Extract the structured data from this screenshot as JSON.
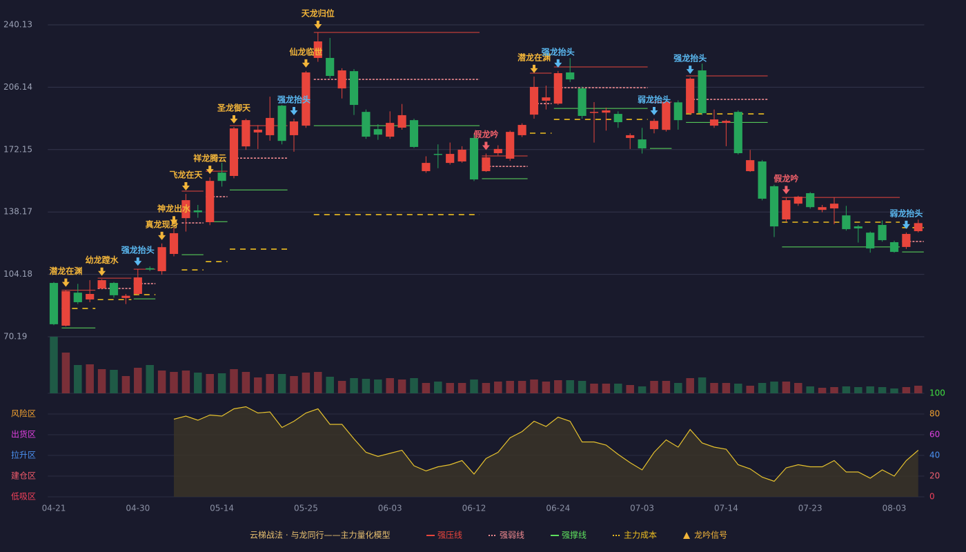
{
  "chart_data": {
    "type": "candlestick",
    "categories": [
      "04-21",
      null,
      null,
      null,
      null,
      null,
      null,
      "04-30",
      null,
      null,
      null,
      null,
      null,
      null,
      "05-14",
      null,
      null,
      null,
      null,
      null,
      null,
      "05-25",
      null,
      null,
      null,
      null,
      null,
      null,
      "06-03",
      null,
      null,
      null,
      null,
      null,
      null,
      "06-12",
      null,
      null,
      null,
      null,
      null,
      null,
      "06-24",
      null,
      null,
      null,
      null,
      null,
      null,
      "07-03",
      null,
      null,
      null,
      null,
      null,
      null,
      "07-14",
      null,
      null,
      null,
      null,
      null,
      null,
      "07-23",
      null,
      null,
      null,
      null,
      null,
      null,
      "08-03",
      null,
      null
    ],
    "open": [
      99.5,
      76.2,
      94.2,
      90.5,
      96.5,
      99.5,
      91.3,
      93.5,
      107.5,
      105.9,
      115.3,
      134.8,
      139.0,
      132.6,
      159.6,
      157.8,
      173.9,
      181.5,
      180.0,
      196.1,
      180.0,
      185.2,
      222.1,
      222.1,
      205.5,
      214.9,
      192.7,
      183.3,
      179.2,
      184.1,
      188.2,
      160.4,
      169.8,
      164.9,
      165.7,
      178.5,
      160.4,
      170.2,
      167.2,
      180.0,
      191.2,
      198.8,
      197.2,
      214.2,
      205.5,
      192.3,
      192.3,
      191.6,
      178.5,
      177.7,
      183.3,
      182.9,
      197.9,
      192.0,
      215.3,
      185.2,
      186.7,
      192.7,
      160.4,
      165.7,
      152.2,
      134.1,
      142.7,
      148.4,
      139.3,
      140.1,
      136.3,
      130.3,
      126.9,
      131.1,
      121.7,
      119.1,
      127.7
    ],
    "high": [
      100.0,
      95.5,
      99.0,
      101.0,
      101.5,
      100.0,
      93.5,
      107.0,
      108.5,
      121.0,
      129.5,
      148.0,
      142.0,
      157.0,
      165.0,
      184.5,
      189.0,
      185.5,
      201.0,
      196.5,
      189.0,
      215.0,
      236.0,
      233.0,
      216.5,
      216.0,
      194.0,
      186.0,
      193.0,
      197.0,
      189.0,
      168.5,
      175.0,
      176.0,
      174.0,
      180.5,
      170.0,
      174.5,
      182.5,
      186.5,
      212.0,
      207.0,
      215.0,
      222.0,
      206.5,
      198.0,
      195.0,
      193.0,
      181.0,
      184.0,
      189.0,
      198.5,
      199.0,
      211.5,
      219.0,
      194.0,
      188.5,
      193.5,
      172.0,
      166.5,
      153.0,
      146.0,
      147.0,
      149.0,
      142.0,
      146.0,
      141.5,
      131.0,
      127.5,
      133.5,
      122.5,
      127.0,
      134.0
    ],
    "low": [
      76.5,
      75.8,
      88.0,
      89.0,
      96.0,
      91.5,
      88.0,
      93.0,
      106.0,
      104.0,
      114.0,
      127.5,
      135.0,
      131.0,
      152.0,
      156.5,
      172.0,
      172.5,
      177.0,
      175.0,
      171.0,
      184.0,
      220.0,
      211.0,
      200.0,
      191.0,
      178.0,
      177.5,
      178.0,
      183.0,
      173.0,
      159.5,
      162.0,
      164.0,
      165.0,
      155.0,
      160.0,
      169.0,
      166.0,
      179.0,
      189.0,
      194.0,
      196.5,
      209.0,
      189.0,
      176.0,
      182.5,
      184.0,
      172.5,
      170.0,
      181.0,
      182.0,
      183.0,
      191.0,
      191.0,
      184.0,
      174.0,
      169.5,
      160.0,
      144.5,
      124.5,
      133.0,
      141.5,
      140.0,
      138.0,
      131.5,
      128.0,
      121.5,
      116.0,
      122.0,
      116.0,
      118.0,
      127.0
    ],
    "close": [
      77.0,
      95.0,
      89.0,
      93.5,
      101.0,
      92.8,
      92.5,
      102.5,
      106.8,
      119.0,
      126.6,
      144.6,
      138.0,
      155.1,
      155.1,
      183.7,
      188.2,
      183.0,
      189.4,
      176.9,
      187.5,
      214.2,
      231.1,
      212.3,
      215.3,
      196.5,
      179.2,
      180.3,
      186.7,
      190.9,
      173.6,
      164.9,
      169.4,
      169.8,
      172.1,
      155.9,
      167.9,
      172.5,
      181.8,
      185.6,
      206.3,
      200.6,
      213.8,
      210.4,
      190.5,
      192.7,
      193.5,
      187.1,
      180.0,
      172.8,
      187.8,
      197.9,
      188.2,
      210.8,
      192.0,
      188.6,
      187.8,
      170.2,
      166.4,
      145.4,
      130.3,
      144.6,
      146.5,
      140.8,
      140.8,
      142.7,
      128.8,
      129.2,
      118.3,
      122.8,
      116.4,
      126.2,
      132.1
    ],
    "up_color": "#e8453c",
    "down_color": "#26a65b",
    "ylim": [
      70.19,
      240.13
    ],
    "yticks": [
      70.19,
      104.18,
      138.17,
      172.15,
      206.14,
      240.13
    ],
    "grid": true,
    "volume": {
      "ylim": [
        0,
        82
      ],
      "up_color": "#7a2f38",
      "down_color": "#1f5a46",
      "values": [
        82,
        59,
        41,
        42,
        35,
        34,
        25,
        37,
        41,
        33,
        31,
        33,
        30,
        28,
        29,
        35,
        31,
        23,
        28,
        28,
        25,
        30,
        31,
        24,
        18,
        22,
        21,
        20,
        22,
        20,
        22,
        15,
        17,
        15,
        15,
        20,
        15,
        17,
        18,
        18,
        20,
        17,
        19,
        19,
        18,
        14,
        14,
        14,
        12,
        10,
        18,
        18,
        15,
        22,
        23,
        15,
        15,
        14,
        11,
        15,
        17,
        17,
        15,
        10,
        8,
        9,
        10,
        9,
        10,
        9,
        7,
        9,
        11
      ]
    },
    "indicator": {
      "color": "#e6c22e",
      "fill": "#3a3428",
      "ylim": [
        0,
        100
      ],
      "yticks": [
        0,
        20,
        40,
        60,
        80,
        100
      ],
      "ytick_colors": [
        "#f0405a",
        "#f06070",
        "#4a90f0",
        "#e040e0",
        "#f0a030",
        "#40e040"
      ],
      "zones": [
        {
          "label": "风险区",
          "value": 80,
          "color": "#f0a030"
        },
        {
          "label": "出货区",
          "value": 60,
          "color": "#e040e0"
        },
        {
          "label": "拉升区",
          "value": 40,
          "color": "#4a90f0"
        },
        {
          "label": "建仓区",
          "value": 20,
          "color": "#f05a6a"
        },
        {
          "label": "低吸区",
          "value": 0,
          "color": "#f0405a"
        }
      ],
      "values": [
        null,
        null,
        null,
        null,
        null,
        null,
        null,
        null,
        null,
        null,
        75,
        78,
        74,
        79,
        78,
        85,
        87,
        81,
        82,
        67,
        73,
        81,
        85,
        70,
        70,
        56,
        43,
        39,
        42,
        45,
        30,
        25,
        29,
        31,
        35,
        22,
        37,
        43,
        57,
        63,
        73,
        68,
        77,
        73,
        53,
        53,
        50,
        41,
        33,
        26,
        43,
        55,
        48,
        65,
        52,
        48,
        46,
        31,
        27,
        19,
        15,
        28,
        31,
        29,
        29,
        35,
        24,
        24,
        18,
        26,
        20,
        35,
        45
      ]
    },
    "signals": [
      {
        "label": "潜龙在渊",
        "index": 1,
        "color": "#f2b53a"
      },
      {
        "label": "幼龙蹚水",
        "index": 4,
        "color": "#f2b53a"
      },
      {
        "label": "强龙抬头",
        "index": 7,
        "color": "#5ab8f0"
      },
      {
        "label": "真龙现身",
        "index": 9,
        "color": "#f2b53a"
      },
      {
        "label": "神龙出水",
        "index": 10,
        "color": "#f2b53a"
      },
      {
        "label": "飞龙在天",
        "index": 11,
        "color": "#f2b53a"
      },
      {
        "label": "祥龙腾云",
        "index": 13,
        "color": "#f2b53a"
      },
      {
        "label": "圣龙御天",
        "index": 15,
        "color": "#f2b53a"
      },
      {
        "label": "强龙抬头",
        "index": 20,
        "color": "#5ab8f0"
      },
      {
        "label": "仙龙临世",
        "index": 21,
        "color": "#f2b53a"
      },
      {
        "label": "天龙归位",
        "index": 22,
        "color": "#f2b53a"
      },
      {
        "label": "假龙吟",
        "index": 36,
        "color": "#f0606a"
      },
      {
        "label": "潜龙在渊",
        "index": 40,
        "color": "#f2b53a"
      },
      {
        "label": "强龙抬头",
        "index": 42,
        "color": "#5ab8f0"
      },
      {
        "label": "弱龙抬头",
        "index": 50,
        "color": "#5ab8f0"
      },
      {
        "label": "强龙抬头",
        "index": 53,
        "color": "#5ab8f0"
      },
      {
        "label": "假龙吟",
        "index": 61,
        "color": "#f0606a"
      },
      {
        "label": "弱龙抬头",
        "index": 71,
        "color": "#5ab8f0"
      }
    ],
    "legend": {
      "title": "云梯战法 · 与龙同行——主力量化模型",
      "title_color": "#e8c070",
      "items": [
        {
          "label": "强压线",
          "color": "#e8453c",
          "dashed": false
        },
        {
          "label": "强弱线",
          "color": "#f08a90",
          "dashed": true
        },
        {
          "label": "强撑线",
          "color": "#5ee05e",
          "dashed": false
        },
        {
          "label": "主力成本",
          "color": "#f0c020",
          "dashed": true
        }
      ],
      "signal": {
        "label": "龙吟信号",
        "color": "#f2b53a"
      }
    },
    "levels": [
      {
        "from": 1,
        "to": 3,
        "values": [
          95.5,
          null,
          75.0,
          85.6
        ]
      },
      {
        "from": 4,
        "to": 6,
        "values": [
          102.1,
          96.5,
          null,
          90.4
        ]
      },
      {
        "from": 7,
        "to": 8,
        "values": [
          107.0,
          99.1,
          90.8,
          93.1
        ]
      },
      {
        "from": 11,
        "to": 12,
        "values": [
          149.5,
          132.2,
          114.9,
          106.6
        ]
      },
      {
        "from": 13,
        "to": 14,
        "values": [
          160.4,
          146.5,
          132.9,
          111.1
        ]
      },
      {
        "from": 15,
        "to": 19,
        "values": [
          185.2,
          167.5,
          150.2,
          117.9
        ]
      },
      {
        "from": 22,
        "to": 35,
        "values": [
          236.0,
          210.4,
          185.2,
          136.7
        ]
      },
      {
        "from": 36,
        "to": 39,
        "values": [
          168.7,
          163.0,
          156.3,
          null
        ]
      },
      {
        "from": 40,
        "to": 41,
        "values": [
          213.8,
          197.2,
          null,
          181.1
        ]
      },
      {
        "from": 42,
        "to": 49,
        "values": [
          217.2,
          205.9,
          194.6,
          188.6
        ]
      },
      {
        "from": 50,
        "to": 51,
        "values": [
          198.0,
          null,
          172.8,
          null
        ]
      },
      {
        "from": 53,
        "to": 59,
        "values": [
          212.3,
          199.5,
          187.0,
          191.6
        ]
      },
      {
        "from": 61,
        "to": 70,
        "values": [
          146.1,
          null,
          119.1,
          132.6
        ]
      },
      {
        "from": 71,
        "to": 72,
        "values": [
          null,
          122.1,
          116.4,
          129.6
        ]
      }
    ]
  }
}
